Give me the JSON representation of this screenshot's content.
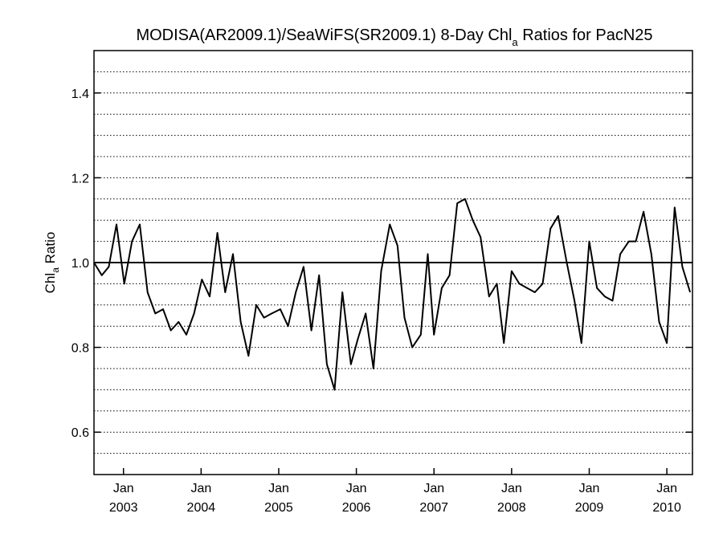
{
  "chart_data": {
    "type": "line",
    "title": "MODISA(AR2009.1)/SeaWiFS(SR2009.1) 8-Day Chl",
    "title_subscript": "a",
    "title_suffix": " Ratios for PacN25",
    "ylabel": "Chl",
    "ylabel_subscript": "a",
    "ylabel_suffix": " Ratio",
    "ylim": [
      0.5,
      1.5
    ],
    "xlim": [
      2002.62,
      2010.33
    ],
    "yticks": [
      {
        "value": 0.6,
        "label": "0.6"
      },
      {
        "value": 0.8,
        "label": "0.8"
      },
      {
        "value": 1.0,
        "label": "1.0"
      },
      {
        "value": 1.2,
        "label": "1.2"
      },
      {
        "value": 1.4,
        "label": "1.4"
      }
    ],
    "xticks": [
      {
        "value": 2003.0,
        "month": "Jan",
        "year": "2003"
      },
      {
        "value": 2004.0,
        "month": "Jan",
        "year": "2004"
      },
      {
        "value": 2005.0,
        "month": "Jan",
        "year": "2005"
      },
      {
        "value": 2006.0,
        "month": "Jan",
        "year": "2006"
      },
      {
        "value": 2007.0,
        "month": "Jan",
        "year": "2007"
      },
      {
        "value": 2008.0,
        "month": "Jan",
        "year": "2008"
      },
      {
        "value": 2009.0,
        "month": "Jan",
        "year": "2009"
      },
      {
        "value": 2010.0,
        "month": "Jan",
        "year": "2010"
      }
    ],
    "grid": true,
    "grid_style": "dotted",
    "grid_step": 0.05,
    "reference_line": 1.0,
    "series": [
      {
        "x": [
          2002.62,
          2002.72,
          2002.81,
          2002.91,
          2003.01,
          2003.11,
          2003.21,
          2003.31,
          2003.41,
          2003.51,
          2003.61,
          2003.71,
          2003.81,
          2003.91,
          2004.01,
          2004.11,
          2004.21,
          2004.31,
          2004.41,
          2004.51,
          2004.61,
          2004.71,
          2004.81,
          2004.91,
          2005.02,
          2005.12,
          2005.22,
          2005.32,
          2005.42,
          2005.52,
          2005.62,
          2005.72,
          2005.82,
          2005.93,
          2006.02,
          2006.12,
          2006.22,
          2006.32,
          2006.43,
          2006.53,
          2006.62,
          2006.72,
          2006.83,
          2006.92,
          2007.0,
          2007.1,
          2007.2,
          2007.3,
          2007.4,
          2007.5,
          2007.6,
          2007.71,
          2007.81,
          2007.9,
          2008.0,
          2008.1,
          2008.2,
          2008.3,
          2008.4,
          2008.5,
          2008.6,
          2008.71,
          2008.81,
          2008.9,
          2009.0,
          2009.1,
          2009.2,
          2009.3,
          2009.4,
          2009.51,
          2009.6,
          2009.7,
          2009.8,
          2009.9,
          2010.0,
          2010.1,
          2010.2,
          2010.3
        ],
        "values": [
          1.0,
          0.97,
          0.99,
          1.09,
          0.95,
          1.05,
          1.09,
          0.93,
          0.88,
          0.89,
          0.84,
          0.86,
          0.83,
          0.88,
          0.96,
          0.92,
          1.07,
          0.93,
          1.02,
          0.86,
          0.78,
          0.9,
          0.87,
          0.88,
          0.89,
          0.85,
          0.93,
          0.99,
          0.84,
          0.97,
          0.76,
          0.7,
          0.93,
          0.76,
          0.82,
          0.88,
          0.75,
          0.98,
          1.09,
          1.04,
          0.87,
          0.8,
          0.83,
          1.02,
          0.83,
          0.94,
          0.97,
          1.14,
          1.15,
          1.1,
          1.06,
          0.92,
          0.95,
          0.81,
          0.98,
          0.95,
          0.94,
          0.93,
          0.95,
          1.08,
          1.11,
          1.0,
          0.91,
          0.81,
          1.05,
          0.94,
          0.92,
          0.91,
          1.02,
          1.05,
          1.05,
          1.12,
          1.02,
          0.86,
          0.81,
          1.13,
          0.99,
          0.93
        ]
      }
    ]
  }
}
